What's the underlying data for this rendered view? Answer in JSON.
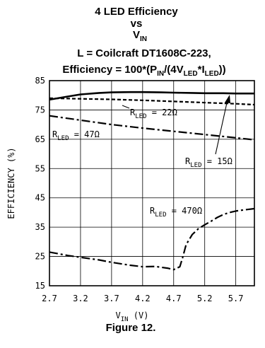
{
  "chart_data": {
    "type": "line",
    "title": {
      "line1": "4 LED Efficiency",
      "line2": "vs",
      "line3_main": "V",
      "line3_sub": "IN",
      "line4": "L = Coilcraft DT1608C-223,",
      "line5_parts": [
        {
          "t": "Efficiency = 100*(P",
          "sub": false
        },
        {
          "t": "IN",
          "sub": true
        },
        {
          "t": "/(4V",
          "sub": false
        },
        {
          "t": "LED",
          "sub": true
        },
        {
          "t": "*I",
          "sub": false
        },
        {
          "t": "LED",
          "sub": true
        },
        {
          "t": "))",
          "sub": false
        }
      ]
    },
    "xlabel": {
      "main": "V",
      "sub": "IN",
      "unit": " (V)"
    },
    "ylabel": "EFFICIENCY (%)",
    "xlim": [
      2.7,
      6.0
    ],
    "ylim": [
      15,
      85
    ],
    "xticks": [
      "2.7",
      "3.2",
      "3.7",
      "4.2",
      "4.7",
      "5.2",
      "5.7"
    ],
    "yticks": [
      "15",
      "25",
      "35",
      "45",
      "55",
      "65",
      "75",
      "85"
    ],
    "grid": true,
    "series": [
      {
        "name": "15Ω",
        "style": "solid",
        "x": [
          2.7,
          3.0,
          3.2,
          3.5,
          3.7,
          4.0,
          4.2,
          4.5,
          4.7,
          5.0,
          5.2,
          5.5,
          5.7,
          6.0
        ],
        "y": [
          78.5,
          79.6,
          80.3,
          80.8,
          81.0,
          81.1,
          81.1,
          81.0,
          80.9,
          80.8,
          80.7,
          80.7,
          80.6,
          80.6
        ]
      },
      {
        "name": "22Ω",
        "style": "dash",
        "x": [
          2.7,
          3.2,
          3.7,
          4.2,
          4.7,
          5.2,
          5.7,
          6.0
        ],
        "y": [
          79.0,
          78.8,
          78.6,
          78.3,
          77.9,
          77.5,
          77.1,
          76.8
        ]
      },
      {
        "name": "47Ω",
        "style": "dashdot",
        "x": [
          2.7,
          3.2,
          3.7,
          4.2,
          4.7,
          5.2,
          5.7,
          6.0
        ],
        "y": [
          73.0,
          71.5,
          70.0,
          68.8,
          67.7,
          66.6,
          65.5,
          64.8
        ]
      },
      {
        "name": "470Ω",
        "style": "dashdot",
        "x": [
          2.7,
          3.0,
          3.2,
          3.5,
          3.7,
          4.0,
          4.2,
          4.4,
          4.6,
          4.7,
          4.8,
          4.85,
          4.9,
          5.0,
          5.1,
          5.2,
          5.3,
          5.4,
          5.5,
          5.6,
          5.7,
          5.8,
          6.0
        ],
        "y": [
          26.5,
          25.3,
          24.7,
          23.8,
          23.0,
          22.0,
          21.5,
          21.6,
          21.0,
          20.5,
          21.5,
          25.0,
          29.0,
          32.5,
          34.5,
          35.8,
          37.0,
          38.3,
          39.3,
          40.0,
          40.5,
          40.8,
          41.3
        ]
      }
    ],
    "annotations": [
      {
        "main": "R",
        "sub": "LED",
        "text": " = 22Ω"
      },
      {
        "main": "R",
        "sub": "LED",
        "text": " = 47Ω"
      },
      {
        "main": "R",
        "sub": "LED",
        "text": " = 15Ω"
      },
      {
        "main": "R",
        "sub": "LED",
        "text": " = 470Ω"
      }
    ],
    "caption": "Figure 12."
  }
}
